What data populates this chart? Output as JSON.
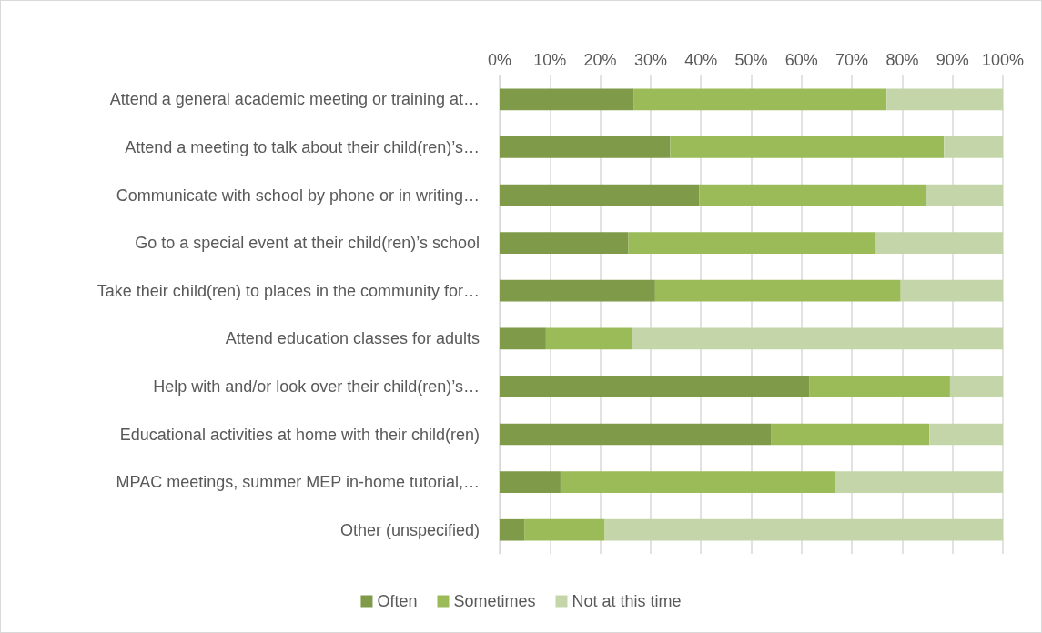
{
  "chart_data": {
    "type": "bar",
    "orientation": "horizontal",
    "stacked": true,
    "categories": [
      "Attend a general academic meeting or training at…",
      "Attend a meeting to talk about their child(ren)’s…",
      "Communicate with school by phone or in writing…",
      "Go to a special event at their child(ren)’s school",
      "Take their child(ren) to places in the community for…",
      "Attend education classes for adults",
      "Help with and/or look over their child(ren)’s…",
      "Educational activities at home with their child(ren)",
      "MPAC meetings, summer MEP in-home tutorial,…",
      "Other (unspecified)"
    ],
    "series": [
      {
        "name": "Often",
        "color": "#7f9a48",
        "values": [
          26.7,
          33.9,
          39.7,
          25.6,
          30.9,
          9.2,
          61.5,
          53.9,
          12.1,
          4.9
        ]
      },
      {
        "name": "Sometimes",
        "color": "#9bbb59",
        "values": [
          50.2,
          54.4,
          45.0,
          49.2,
          48.8,
          17.1,
          28.0,
          31.5,
          54.6,
          16.0
        ]
      },
      {
        "name": "Not at this time",
        "color": "#c4d6a9",
        "values": [
          23.1,
          11.7,
          15.3,
          25.2,
          20.3,
          73.7,
          10.5,
          14.6,
          33.3,
          79.1
        ]
      }
    ],
    "xlim": [
      0,
      100
    ],
    "xticks": [
      {
        "value": 0,
        "label": "0%"
      },
      {
        "value": 10,
        "label": "10%"
      },
      {
        "value": 20,
        "label": "20%"
      },
      {
        "value": 30,
        "label": "30%"
      },
      {
        "value": 40,
        "label": "40%"
      },
      {
        "value": 50,
        "label": "50%"
      },
      {
        "value": 60,
        "label": "60%"
      },
      {
        "value": 70,
        "label": "70%"
      },
      {
        "value": 80,
        "label": "80%"
      },
      {
        "value": 90,
        "label": "90%"
      },
      {
        "value": 100,
        "label": "100%"
      }
    ],
    "grid": "x",
    "legend": "bottom"
  }
}
